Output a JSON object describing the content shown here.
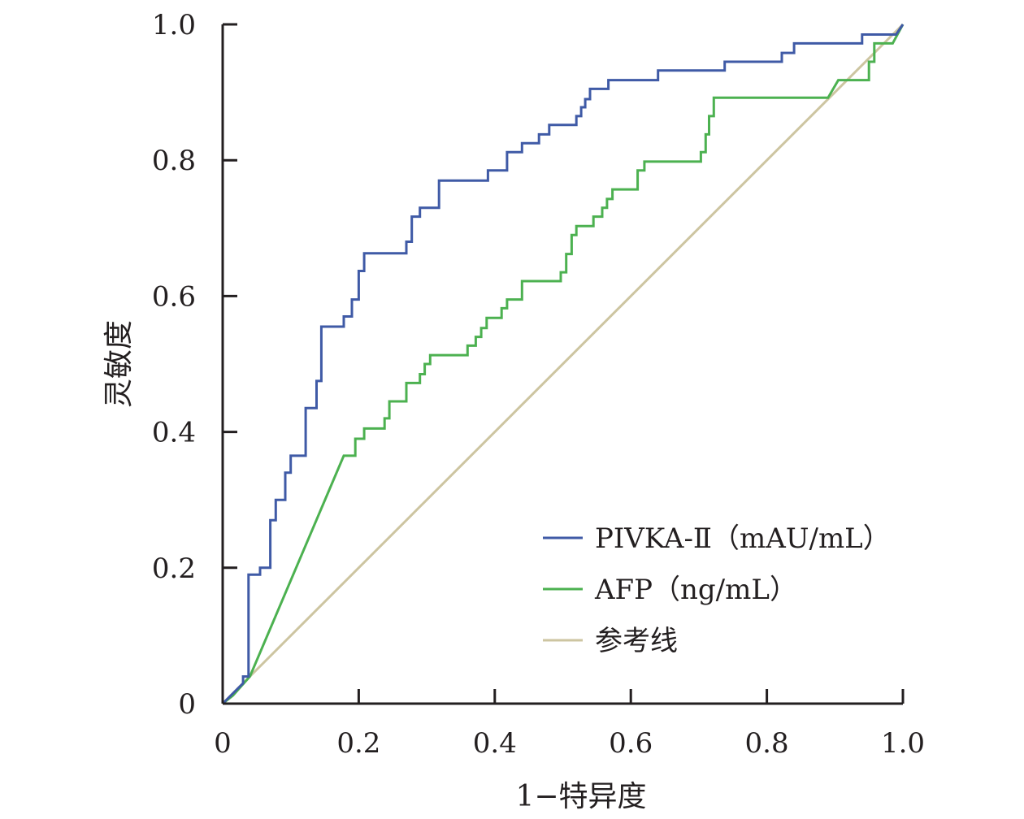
{
  "chart_data": {
    "type": "line",
    "xlabel": "1−特异度",
    "ylabel": "灵敏度",
    "xlim": [
      0,
      1
    ],
    "ylim": [
      0,
      1
    ],
    "grid": false,
    "legend_position": "bottom-right",
    "x_ticks": [
      "0",
      "0.2",
      "0.4",
      "0.6",
      "0.8",
      "1.0"
    ],
    "y_ticks": [
      "0",
      "0.2",
      "0.4",
      "0.6",
      "0.8",
      "1.0"
    ],
    "series": [
      {
        "name": "PIVKA-Ⅱ（mAU/mL）",
        "color": "#3f5aa6",
        "points": [
          [
            0,
            0
          ],
          [
            0.03,
            0.03
          ],
          [
            0.03,
            0.04
          ],
          [
            0.038,
            0.04
          ],
          [
            0.038,
            0.19
          ],
          [
            0.055,
            0.19
          ],
          [
            0.055,
            0.2
          ],
          [
            0.07,
            0.2
          ],
          [
            0.07,
            0.27
          ],
          [
            0.078,
            0.27
          ],
          [
            0.078,
            0.3
          ],
          [
            0.092,
            0.3
          ],
          [
            0.092,
            0.34
          ],
          [
            0.1,
            0.34
          ],
          [
            0.1,
            0.365
          ],
          [
            0.122,
            0.365
          ],
          [
            0.122,
            0.435
          ],
          [
            0.138,
            0.435
          ],
          [
            0.138,
            0.475
          ],
          [
            0.145,
            0.475
          ],
          [
            0.145,
            0.555
          ],
          [
            0.178,
            0.555
          ],
          [
            0.178,
            0.57
          ],
          [
            0.19,
            0.57
          ],
          [
            0.19,
            0.595
          ],
          [
            0.2,
            0.595
          ],
          [
            0.2,
            0.637
          ],
          [
            0.208,
            0.637
          ],
          [
            0.208,
            0.663
          ],
          [
            0.27,
            0.663
          ],
          [
            0.27,
            0.68
          ],
          [
            0.278,
            0.68
          ],
          [
            0.278,
            0.717
          ],
          [
            0.29,
            0.717
          ],
          [
            0.29,
            0.73
          ],
          [
            0.318,
            0.73
          ],
          [
            0.318,
            0.77
          ],
          [
            0.39,
            0.77
          ],
          [
            0.39,
            0.785
          ],
          [
            0.418,
            0.785
          ],
          [
            0.418,
            0.812
          ],
          [
            0.44,
            0.812
          ],
          [
            0.44,
            0.825
          ],
          [
            0.465,
            0.825
          ],
          [
            0.465,
            0.838
          ],
          [
            0.48,
            0.838
          ],
          [
            0.48,
            0.852
          ],
          [
            0.52,
            0.852
          ],
          [
            0.52,
            0.865
          ],
          [
            0.527,
            0.865
          ],
          [
            0.527,
            0.878
          ],
          [
            0.533,
            0.878
          ],
          [
            0.533,
            0.89
          ],
          [
            0.54,
            0.89
          ],
          [
            0.54,
            0.905
          ],
          [
            0.567,
            0.905
          ],
          [
            0.567,
            0.918
          ],
          [
            0.64,
            0.918
          ],
          [
            0.64,
            0.932
          ],
          [
            0.738,
            0.932
          ],
          [
            0.738,
            0.945
          ],
          [
            0.822,
            0.945
          ],
          [
            0.822,
            0.958
          ],
          [
            0.84,
            0.958
          ],
          [
            0.84,
            0.972
          ],
          [
            0.94,
            0.972
          ],
          [
            0.94,
            0.985
          ],
          [
            0.99,
            0.985
          ],
          [
            1,
            1
          ]
        ]
      },
      {
        "name": "AFP（ng/mL）",
        "color": "#4cb150",
        "points": [
          [
            0,
            0
          ],
          [
            0.015,
            0.012
          ],
          [
            0.04,
            0.04
          ],
          [
            0.178,
            0.365
          ],
          [
            0.195,
            0.365
          ],
          [
            0.195,
            0.39
          ],
          [
            0.208,
            0.39
          ],
          [
            0.208,
            0.405
          ],
          [
            0.238,
            0.405
          ],
          [
            0.238,
            0.42
          ],
          [
            0.245,
            0.42
          ],
          [
            0.245,
            0.445
          ],
          [
            0.27,
            0.445
          ],
          [
            0.27,
            0.472
          ],
          [
            0.29,
            0.472
          ],
          [
            0.29,
            0.485
          ],
          [
            0.297,
            0.485
          ],
          [
            0.297,
            0.5
          ],
          [
            0.305,
            0.5
          ],
          [
            0.305,
            0.513
          ],
          [
            0.36,
            0.513
          ],
          [
            0.36,
            0.527
          ],
          [
            0.372,
            0.527
          ],
          [
            0.372,
            0.54
          ],
          [
            0.38,
            0.54
          ],
          [
            0.38,
            0.553
          ],
          [
            0.388,
            0.553
          ],
          [
            0.388,
            0.568
          ],
          [
            0.41,
            0.568
          ],
          [
            0.41,
            0.582
          ],
          [
            0.418,
            0.582
          ],
          [
            0.418,
            0.595
          ],
          [
            0.44,
            0.595
          ],
          [
            0.44,
            0.622
          ],
          [
            0.497,
            0.622
          ],
          [
            0.497,
            0.635
          ],
          [
            0.505,
            0.635
          ],
          [
            0.505,
            0.662
          ],
          [
            0.513,
            0.662
          ],
          [
            0.513,
            0.69
          ],
          [
            0.52,
            0.69
          ],
          [
            0.52,
            0.703
          ],
          [
            0.545,
            0.703
          ],
          [
            0.545,
            0.717
          ],
          [
            0.558,
            0.717
          ],
          [
            0.558,
            0.73
          ],
          [
            0.565,
            0.73
          ],
          [
            0.565,
            0.743
          ],
          [
            0.573,
            0.743
          ],
          [
            0.573,
            0.757
          ],
          [
            0.61,
            0.757
          ],
          [
            0.61,
            0.785
          ],
          [
            0.62,
            0.785
          ],
          [
            0.62,
            0.798
          ],
          [
            0.703,
            0.798
          ],
          [
            0.703,
            0.812
          ],
          [
            0.71,
            0.812
          ],
          [
            0.71,
            0.838
          ],
          [
            0.715,
            0.838
          ],
          [
            0.715,
            0.865
          ],
          [
            0.722,
            0.865
          ],
          [
            0.722,
            0.892
          ],
          [
            0.89,
            0.892
          ],
          [
            0.905,
            0.918
          ],
          [
            0.95,
            0.918
          ],
          [
            0.95,
            0.945
          ],
          [
            0.958,
            0.945
          ],
          [
            0.958,
            0.972
          ],
          [
            0.985,
            0.972
          ],
          [
            1,
            1
          ]
        ]
      },
      {
        "name": "参考线",
        "color": "#cdc5a1",
        "points": [
          [
            0,
            0
          ],
          [
            1,
            1
          ]
        ]
      }
    ]
  }
}
